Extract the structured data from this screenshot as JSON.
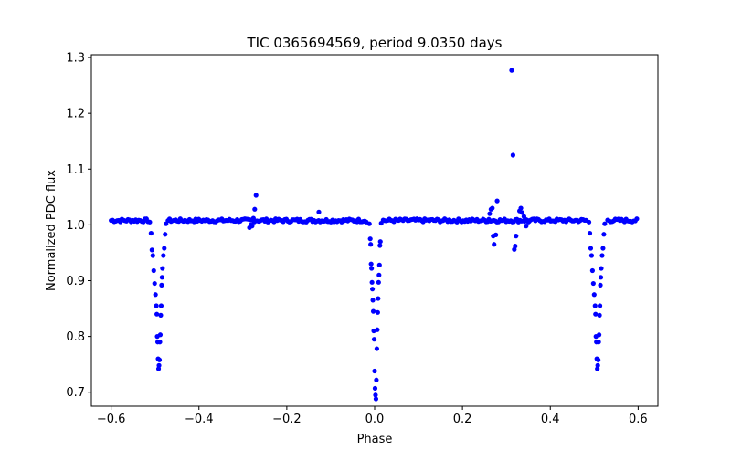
{
  "chart_data": {
    "type": "scatter",
    "title": "TIC 0365694569, period 9.0350 days",
    "xlabel": "Phase",
    "ylabel": "Normalized PDC flux",
    "xlim": [
      -0.645,
      0.645
    ],
    "ylim": [
      0.675,
      1.305
    ],
    "xticks": [
      -0.6,
      -0.4,
      -0.2,
      0.0,
      0.2,
      0.4,
      0.6
    ],
    "xtick_labels": [
      "−0.6",
      "−0.4",
      "−0.2",
      "0.0",
      "0.2",
      "0.4",
      "0.6"
    ],
    "yticks": [
      0.7,
      0.8,
      0.9,
      1.0,
      1.1,
      1.2,
      1.3
    ],
    "ytick_labels": [
      "0.7",
      "0.8",
      "0.9",
      "1.0",
      "1.1",
      "1.2",
      "1.3"
    ],
    "grid": false,
    "marker_color": "#0000ff",
    "baseline_flux": 1.008,
    "baseline_phase_step": 0.0035,
    "eclipse_points": [
      [
        -0.512,
        1.005
      ],
      [
        -0.509,
        0.985
      ],
      [
        -0.507,
        0.955
      ],
      [
        -0.505,
        0.945
      ],
      [
        -0.503,
        0.918
      ],
      [
        -0.501,
        0.895
      ],
      [
        -0.499,
        0.875
      ],
      [
        -0.497,
        0.855
      ],
      [
        -0.496,
        0.84
      ],
      [
        -0.495,
        0.8
      ],
      [
        -0.494,
        0.79
      ],
      [
        -0.493,
        0.76
      ],
      [
        -0.492,
        0.742
      ],
      [
        -0.491,
        0.748
      ],
      [
        -0.49,
        0.758
      ],
      [
        -0.489,
        0.79
      ],
      [
        -0.488,
        0.803
      ],
      [
        -0.487,
        0.838
      ],
      [
        -0.486,
        0.855
      ],
      [
        -0.485,
        0.892
      ],
      [
        -0.484,
        0.906
      ],
      [
        -0.483,
        0.922
      ],
      [
        -0.481,
        0.945
      ],
      [
        -0.479,
        0.958
      ],
      [
        -0.477,
        0.983
      ],
      [
        -0.475,
        1.002
      ],
      [
        -0.012,
        1.002
      ],
      [
        -0.01,
        0.975
      ],
      [
        -0.009,
        0.965
      ],
      [
        -0.008,
        0.93
      ],
      [
        -0.007,
        0.922
      ],
      [
        -0.006,
        0.897
      ],
      [
        -0.005,
        0.885
      ],
      [
        -0.004,
        0.865
      ],
      [
        -0.003,
        0.845
      ],
      [
        -0.002,
        0.81
      ],
      [
        -0.001,
        0.795
      ],
      [
        0.0,
        0.738
      ],
      [
        0.001,
        0.707
      ],
      [
        0.002,
        0.695
      ],
      [
        0.003,
        0.688
      ],
      [
        0.004,
        0.722
      ],
      [
        0.005,
        0.778
      ],
      [
        0.006,
        0.812
      ],
      [
        0.007,
        0.843
      ],
      [
        0.008,
        0.868
      ],
      [
        0.009,
        0.897
      ],
      [
        0.01,
        0.91
      ],
      [
        0.011,
        0.928
      ],
      [
        0.012,
        0.963
      ],
      [
        0.013,
        0.97
      ],
      [
        0.015,
        1.003
      ],
      [
        0.488,
        1.005
      ],
      [
        0.49,
        0.985
      ],
      [
        0.492,
        0.958
      ],
      [
        0.494,
        0.945
      ],
      [
        0.496,
        0.918
      ],
      [
        0.498,
        0.895
      ],
      [
        0.5,
        0.875
      ],
      [
        0.502,
        0.855
      ],
      [
        0.503,
        0.84
      ],
      [
        0.504,
        0.8
      ],
      [
        0.505,
        0.79
      ],
      [
        0.506,
        0.76
      ],
      [
        0.507,
        0.742
      ],
      [
        0.508,
        0.748
      ],
      [
        0.509,
        0.758
      ],
      [
        0.51,
        0.79
      ],
      [
        0.511,
        0.803
      ],
      [
        0.512,
        0.838
      ],
      [
        0.513,
        0.855
      ],
      [
        0.514,
        0.892
      ],
      [
        0.515,
        0.906
      ],
      [
        0.516,
        0.922
      ],
      [
        0.518,
        0.945
      ],
      [
        0.52,
        0.958
      ],
      [
        0.522,
        0.983
      ],
      [
        0.524,
        1.002
      ]
    ],
    "outlier_points": [
      [
        -0.285,
        0.995
      ],
      [
        -0.282,
        1.0
      ],
      [
        -0.279,
        0.998
      ],
      [
        -0.276,
        1.012
      ],
      [
        -0.273,
        1.028
      ],
      [
        -0.27,
        1.053
      ],
      [
        -0.127,
        1.023
      ],
      [
        0.26,
        1.01
      ],
      [
        0.262,
        1.02
      ],
      [
        0.265,
        1.028
      ],
      [
        0.268,
        1.03
      ],
      [
        0.27,
        0.98
      ],
      [
        0.272,
        0.965
      ],
      [
        0.276,
        0.982
      ],
      [
        0.279,
        1.043
      ],
      [
        0.312,
        1.277
      ],
      [
        0.315,
        1.125
      ],
      [
        0.318,
        0.956
      ],
      [
        0.32,
        0.962
      ],
      [
        0.322,
        0.98
      ],
      [
        0.33,
        1.025
      ],
      [
        0.333,
        1.03
      ],
      [
        0.336,
        1.022
      ],
      [
        0.34,
        1.015
      ],
      [
        0.345,
        0.998
      ],
      [
        0.35,
        1.005
      ]
    ]
  }
}
